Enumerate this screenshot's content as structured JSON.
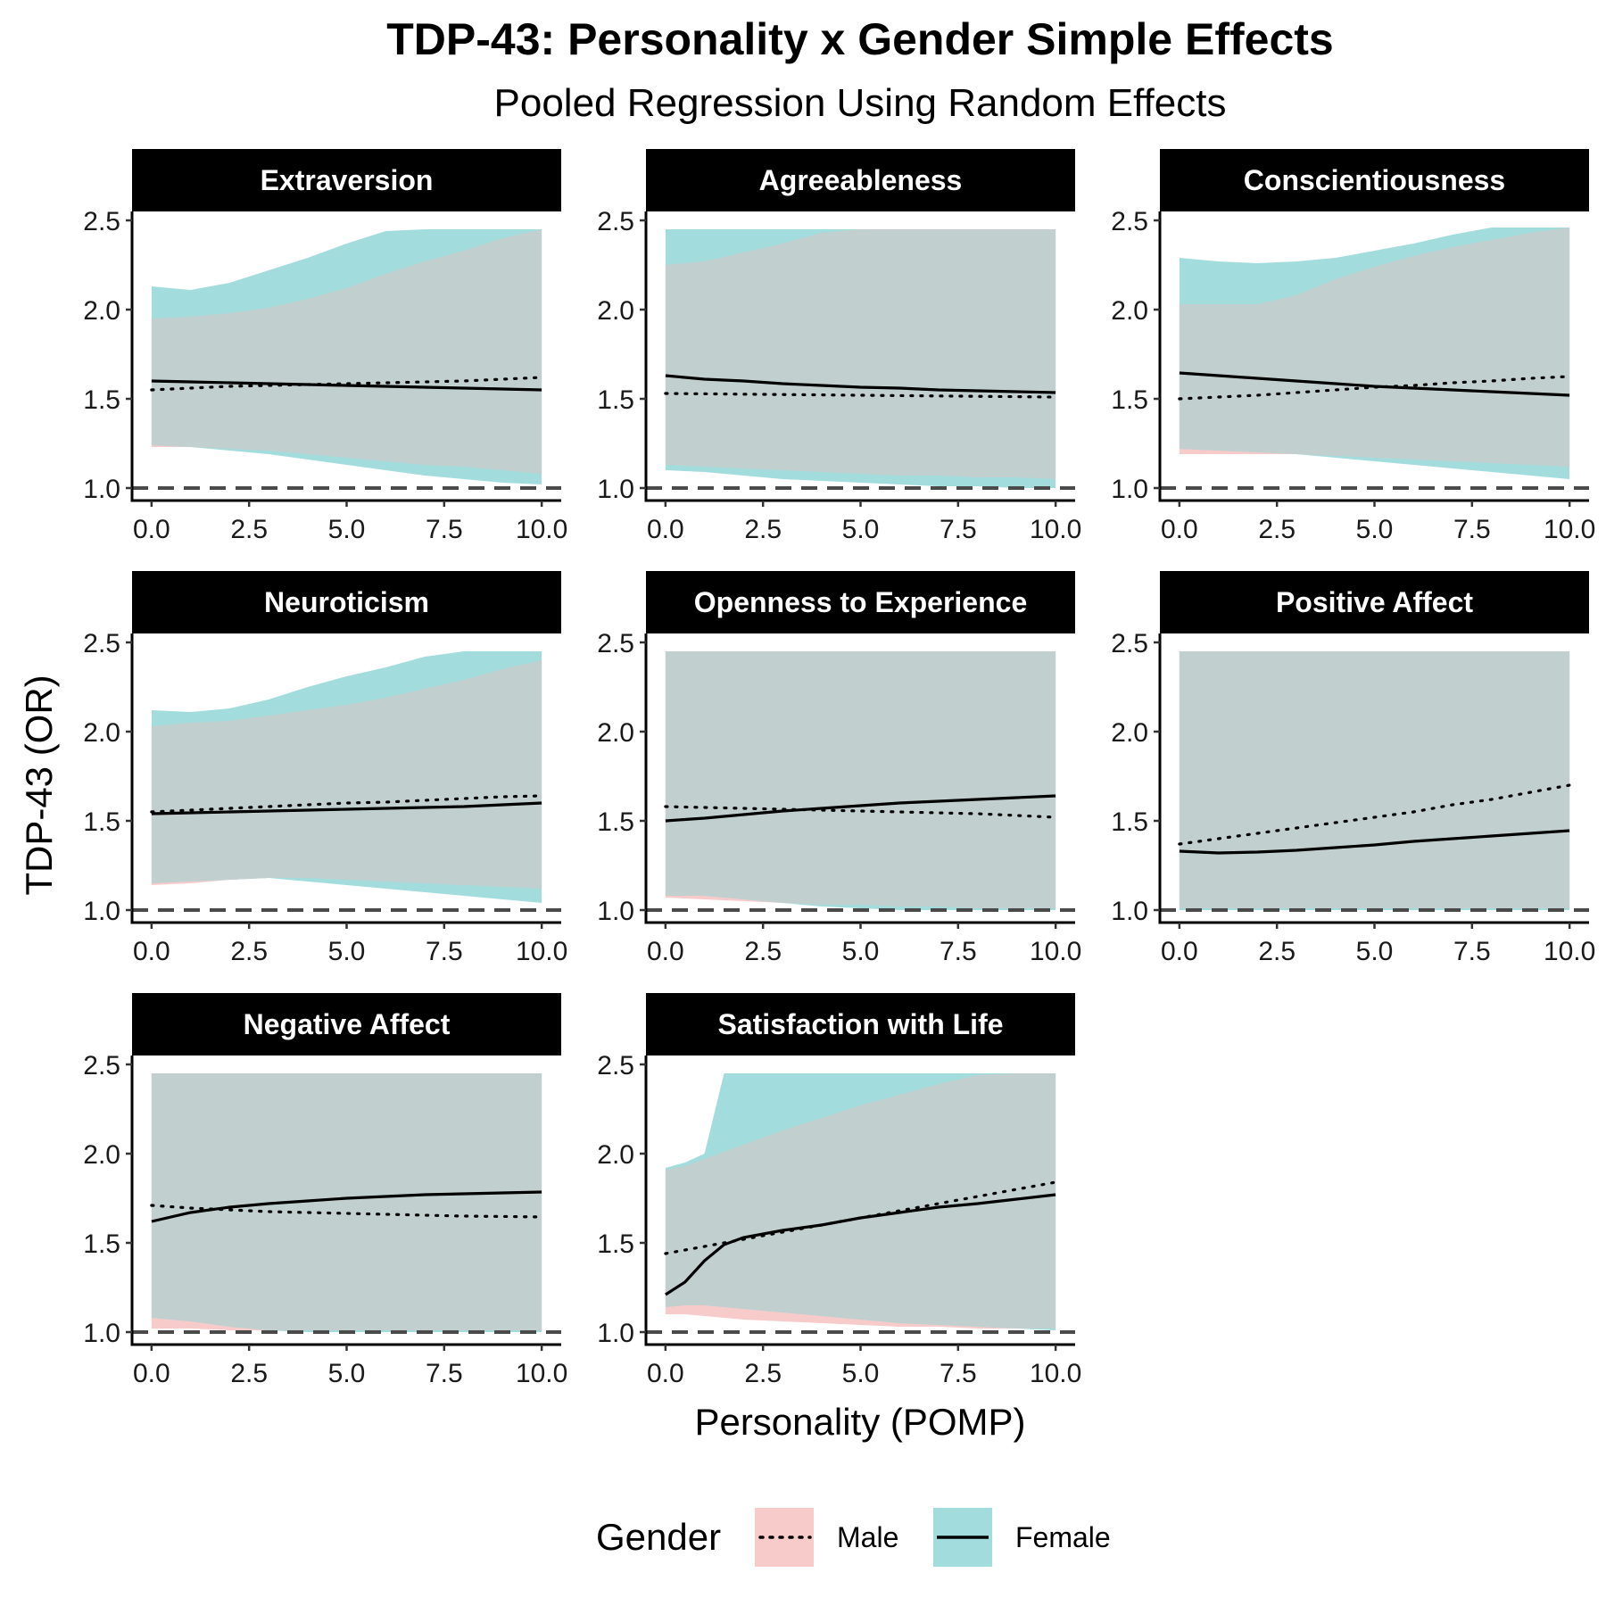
{
  "title": "TDP-43: Personality x Gender Simple Effects",
  "subtitle": "Pooled Regression Using Random Effects",
  "colors": {
    "male_band": "#f8cbcb",
    "female_band": "#a3dcdd",
    "overlap_band": "#c2cfcf",
    "strip_bg": "#000000"
  },
  "chart_data": {
    "type": "line",
    "xlabel": "Personality (POMP)",
    "ylabel": "TDP-43 (OR)",
    "xlim": [
      -0.5,
      10.5
    ],
    "ylim": [
      0.93,
      2.55
    ],
    "x_ticks": [
      "0.0",
      "2.5",
      "5.0",
      "7.5",
      "10.0"
    ],
    "y_ticks": [
      "1.0",
      "1.5",
      "2.0",
      "2.5"
    ],
    "reference_line": 1.0,
    "grid": false,
    "legend": {
      "title": "Gender",
      "position": "bottom",
      "entries": [
        {
          "label": "Male",
          "line": "dotted",
          "band_color": "#f8cbcb"
        },
        {
          "label": "Female",
          "line": "solid",
          "band_color": "#a3dcdd"
        }
      ]
    },
    "panels": [
      {
        "name": "Extraversion",
        "x": [
          0,
          1,
          2,
          3,
          4,
          5,
          6,
          7,
          8,
          9,
          10
        ],
        "male": [
          1.55,
          1.56,
          1.57,
          1.575,
          1.58,
          1.585,
          1.59,
          1.595,
          1.6,
          1.61,
          1.62
        ],
        "female": [
          1.6,
          1.595,
          1.59,
          1.585,
          1.58,
          1.575,
          1.57,
          1.565,
          1.56,
          1.555,
          1.55
        ],
        "male_lower": [
          1.23,
          1.23,
          1.22,
          1.21,
          1.19,
          1.17,
          1.15,
          1.13,
          1.12,
          1.1,
          1.08
        ],
        "male_upper": [
          1.95,
          1.96,
          1.98,
          2.01,
          2.06,
          2.12,
          2.2,
          2.27,
          2.33,
          2.4,
          2.45
        ],
        "female_lower": [
          1.24,
          1.23,
          1.21,
          1.19,
          1.16,
          1.13,
          1.1,
          1.07,
          1.05,
          1.03,
          1.02
        ],
        "female_upper": [
          2.13,
          2.11,
          2.15,
          2.22,
          2.29,
          2.37,
          2.44,
          2.45,
          2.45,
          2.45,
          2.45
        ]
      },
      {
        "name": "Agreeableness",
        "x": [
          0,
          1,
          2,
          3,
          4,
          5,
          6,
          7,
          8,
          9,
          10
        ],
        "male": [
          1.53,
          1.528,
          1.526,
          1.524,
          1.522,
          1.52,
          1.518,
          1.516,
          1.514,
          1.512,
          1.51
        ],
        "female": [
          1.63,
          1.61,
          1.6,
          1.585,
          1.575,
          1.565,
          1.56,
          1.55,
          1.545,
          1.54,
          1.535
        ],
        "male_lower": [
          1.13,
          1.12,
          1.11,
          1.1,
          1.09,
          1.08,
          1.07,
          1.07,
          1.06,
          1.06,
          1.05
        ],
        "male_upper": [
          2.25,
          2.27,
          2.32,
          2.37,
          2.43,
          2.45,
          2.45,
          2.45,
          2.45,
          2.45,
          2.45
        ],
        "female_lower": [
          1.1,
          1.09,
          1.07,
          1.05,
          1.04,
          1.03,
          1.02,
          1.01,
          1.01,
          1.0,
          1.0
        ],
        "female_upper": [
          2.45,
          2.45,
          2.45,
          2.45,
          2.45,
          2.45,
          2.45,
          2.45,
          2.45,
          2.45,
          2.45
        ]
      },
      {
        "name": "Conscientiousness",
        "x": [
          0,
          1,
          2,
          3,
          4,
          5,
          6,
          7,
          8,
          9,
          10
        ],
        "male": [
          1.5,
          1.51,
          1.52,
          1.535,
          1.55,
          1.565,
          1.575,
          1.59,
          1.6,
          1.615,
          1.625
        ],
        "female": [
          1.645,
          1.63,
          1.615,
          1.6,
          1.585,
          1.57,
          1.56,
          1.55,
          1.54,
          1.53,
          1.52
        ],
        "male_lower": [
          1.19,
          1.19,
          1.19,
          1.19,
          1.18,
          1.17,
          1.16,
          1.15,
          1.14,
          1.13,
          1.12
        ],
        "male_upper": [
          2.03,
          2.03,
          2.03,
          2.08,
          2.17,
          2.24,
          2.3,
          2.35,
          2.39,
          2.43,
          2.46
        ],
        "female_lower": [
          1.22,
          1.21,
          1.2,
          1.19,
          1.17,
          1.15,
          1.13,
          1.11,
          1.09,
          1.07,
          1.05
        ],
        "female_upper": [
          2.29,
          2.27,
          2.26,
          2.27,
          2.29,
          2.33,
          2.37,
          2.42,
          2.46,
          2.46,
          2.46
        ]
      },
      {
        "name": "Neuroticism",
        "x": [
          0,
          1,
          2,
          3,
          4,
          5,
          6,
          7,
          8,
          9,
          10
        ],
        "male": [
          1.55,
          1.56,
          1.57,
          1.58,
          1.59,
          1.6,
          1.605,
          1.615,
          1.625,
          1.635,
          1.64
        ],
        "female": [
          1.54,
          1.545,
          1.55,
          1.555,
          1.56,
          1.565,
          1.57,
          1.575,
          1.58,
          1.59,
          1.6
        ],
        "male_lower": [
          1.14,
          1.15,
          1.17,
          1.18,
          1.18,
          1.17,
          1.16,
          1.15,
          1.14,
          1.13,
          1.12
        ],
        "male_upper": [
          2.03,
          2.05,
          2.06,
          2.09,
          2.12,
          2.15,
          2.19,
          2.24,
          2.29,
          2.35,
          2.4
        ],
        "female_lower": [
          1.15,
          1.16,
          1.17,
          1.18,
          1.16,
          1.14,
          1.12,
          1.1,
          1.08,
          1.06,
          1.04
        ],
        "female_upper": [
          2.12,
          2.11,
          2.13,
          2.18,
          2.25,
          2.31,
          2.36,
          2.42,
          2.45,
          2.45,
          2.45
        ]
      },
      {
        "name": "Openness to Experience",
        "x": [
          0,
          1,
          2,
          3,
          4,
          5,
          6,
          7,
          8,
          9,
          10
        ],
        "male": [
          1.58,
          1.575,
          1.57,
          1.565,
          1.56,
          1.555,
          1.55,
          1.545,
          1.54,
          1.53,
          1.52
        ],
        "female": [
          1.5,
          1.515,
          1.535,
          1.555,
          1.57,
          1.585,
          1.6,
          1.61,
          1.62,
          1.63,
          1.64
        ],
        "male_lower": [
          1.07,
          1.06,
          1.05,
          1.04,
          1.03,
          1.03,
          1.02,
          1.02,
          1.01,
          1.01,
          1.01
        ],
        "male_upper": [
          2.45,
          2.45,
          2.45,
          2.45,
          2.45,
          2.45,
          2.45,
          2.45,
          2.45,
          2.45,
          2.45
        ],
        "female_lower": [
          1.08,
          1.08,
          1.06,
          1.04,
          1.02,
          1.01,
          1.0,
          1.0,
          1.0,
          1.0,
          1.0
        ],
        "female_upper": [
          2.45,
          2.45,
          2.45,
          2.45,
          2.45,
          2.45,
          2.45,
          2.45,
          2.45,
          2.45,
          2.45
        ]
      },
      {
        "name": "Positive Affect",
        "x": [
          0,
          1,
          2,
          3,
          4,
          5,
          6,
          7,
          8,
          9,
          10
        ],
        "male": [
          1.37,
          1.4,
          1.43,
          1.46,
          1.49,
          1.52,
          1.55,
          1.59,
          1.62,
          1.66,
          1.7
        ],
        "female": [
          1.33,
          1.32,
          1.325,
          1.335,
          1.35,
          1.365,
          1.385,
          1.4,
          1.415,
          1.43,
          1.445
        ],
        "male_lower": [
          1.01,
          1.01,
          1.01,
          1.01,
          1.01,
          1.01,
          1.01,
          1.01,
          1.01,
          1.01,
          1.01
        ],
        "male_upper": [
          2.45,
          2.45,
          2.45,
          2.45,
          2.45,
          2.45,
          2.45,
          2.45,
          2.45,
          2.45,
          2.45
        ],
        "female_lower": [
          1.0,
          1.0,
          1.0,
          1.0,
          1.0,
          1.0,
          1.0,
          1.0,
          1.0,
          1.0,
          1.0
        ],
        "female_upper": [
          2.45,
          2.45,
          2.45,
          2.45,
          2.45,
          2.45,
          2.45,
          2.45,
          2.45,
          2.45,
          2.45
        ]
      },
      {
        "name": "Negative Affect",
        "x": [
          0,
          1,
          2,
          3,
          4,
          5,
          6,
          7,
          8,
          9,
          10
        ],
        "male": [
          1.71,
          1.695,
          1.685,
          1.675,
          1.67,
          1.665,
          1.66,
          1.655,
          1.65,
          1.648,
          1.645
        ],
        "female": [
          1.62,
          1.67,
          1.7,
          1.72,
          1.735,
          1.75,
          1.76,
          1.77,
          1.775,
          1.78,
          1.785
        ],
        "male_lower": [
          1.02,
          1.02,
          1.01,
          1.01,
          1.01,
          1.01,
          1.01,
          1.01,
          1.01,
          1.01,
          1.01
        ],
        "male_upper": [
          2.45,
          2.45,
          2.45,
          2.45,
          2.45,
          2.45,
          2.45,
          2.45,
          2.45,
          2.45,
          2.45
        ],
        "female_lower": [
          1.08,
          1.06,
          1.03,
          1.01,
          1.0,
          1.0,
          1.0,
          1.0,
          1.0,
          1.0,
          1.0
        ],
        "female_upper": [
          2.45,
          2.45,
          2.45,
          2.45,
          2.45,
          2.45,
          2.45,
          2.45,
          2.45,
          2.45,
          2.45
        ]
      },
      {
        "name": "Satisfaction with Life",
        "x": [
          0,
          0.5,
          1,
          1.5,
          2,
          3,
          4,
          5,
          6,
          7,
          8,
          9,
          10
        ],
        "male": [
          1.44,
          1.46,
          1.48,
          1.5,
          1.52,
          1.56,
          1.6,
          1.64,
          1.68,
          1.72,
          1.76,
          1.8,
          1.84
        ],
        "female": [
          1.21,
          1.28,
          1.4,
          1.49,
          1.53,
          1.57,
          1.6,
          1.64,
          1.67,
          1.7,
          1.72,
          1.745,
          1.77
        ],
        "male_lower": [
          1.1,
          1.1,
          1.09,
          1.08,
          1.07,
          1.06,
          1.05,
          1.04,
          1.03,
          1.03,
          1.02,
          1.02,
          1.02
        ],
        "male_upper": [
          1.91,
          1.93,
          1.97,
          2.01,
          2.05,
          2.13,
          2.2,
          2.27,
          2.33,
          2.39,
          2.44,
          2.45,
          2.45
        ],
        "female_lower": [
          1.14,
          1.15,
          1.15,
          1.14,
          1.13,
          1.11,
          1.09,
          1.07,
          1.05,
          1.04,
          1.03,
          1.02,
          1.01
        ],
        "female_upper": [
          1.92,
          1.95,
          2.0,
          2.45,
          2.45,
          2.45,
          2.45,
          2.45,
          2.45,
          2.45,
          2.45,
          2.45,
          2.45
        ]
      }
    ]
  }
}
